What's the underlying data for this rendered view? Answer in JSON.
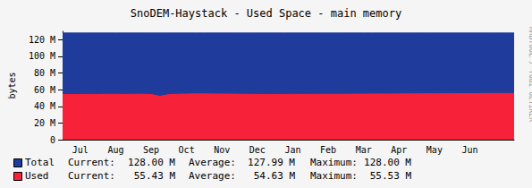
{
  "chart_data": {
    "type": "area",
    "title": "SnoDEM-Haystack - Used Space - main memory",
    "y_label": "bytes",
    "annotations": [
      "RRDTOOL / TOBI OETIKER"
    ],
    "categories": [
      null,
      null,
      "Jul",
      null,
      null,
      null,
      "Aug",
      null,
      null,
      null,
      "Sep",
      null,
      null,
      null,
      "Oct",
      null,
      null,
      null,
      "Nov",
      null,
      null,
      null,
      "Dec",
      null,
      null,
      null,
      "Jan",
      null,
      null,
      null,
      "Feb",
      null,
      null,
      null,
      "Mar",
      null,
      null,
      null,
      "Apr",
      null,
      null,
      null,
      "May",
      null,
      null,
      null,
      "Jun",
      null,
      null,
      null,
      null,
      null
    ],
    "series": [
      {
        "name": "Total",
        "color": "#1f3b9b",
        "stats": [
          [
            "Current:",
            "128.00 M"
          ],
          [
            "Average:",
            "127.99 M"
          ],
          [
            "Maximum:",
            "128.00 M"
          ]
        ],
        "values": [
          128,
          128,
          128,
          128,
          128,
          128,
          128,
          128,
          128,
          128,
          128,
          128,
          128,
          128,
          128,
          128,
          128,
          128,
          128,
          128,
          128,
          128,
          128,
          128,
          128,
          128,
          128,
          128,
          128,
          128,
          128,
          128,
          128,
          128,
          128,
          128,
          128,
          128,
          128,
          128,
          128,
          128,
          128,
          128,
          128,
          128,
          128,
          128,
          128,
          128,
          128,
          128
        ]
      },
      {
        "name": "Used",
        "color": "#f8213a",
        "stats": [
          [
            "Current:",
            "55.43 M"
          ],
          [
            "Average:",
            "54.63 M"
          ],
          [
            "Maximum:",
            "55.53 M"
          ]
        ],
        "values": [
          54.2,
          54.3,
          54.3,
          54.4,
          54.4,
          54.5,
          54.5,
          54.4,
          54.5,
          54.6,
          54.3,
          52.0,
          54.2,
          54.6,
          54.8,
          55.0,
          55.0,
          54.9,
          54.8,
          54.7,
          54.6,
          54.5,
          54.4,
          54.3,
          54.4,
          54.4,
          54.5,
          54.4,
          54.5,
          54.5,
          54.6,
          54.5,
          54.6,
          54.7,
          54.7,
          54.8,
          54.8,
          54.9,
          54.9,
          55.0,
          55.0,
          55.1,
          55.1,
          55.2,
          55.2,
          55.3,
          55.3,
          55.4,
          55.5,
          55.5,
          55.5,
          55.4
        ]
      }
    ],
    "ylim": [
      0,
      130
    ],
    "yticks": [
      0,
      {
        "value": 20,
        "label": "20 M"
      },
      {
        "value": 40,
        "label": "40 M"
      },
      {
        "value": 60,
        "label": "60 M"
      },
      {
        "value": 80,
        "label": "80 M"
      },
      {
        "value": 100,
        "label": "100 M"
      },
      {
        "value": 120,
        "label": "120 M"
      }
    ],
    "stacked": false,
    "grid": true
  }
}
